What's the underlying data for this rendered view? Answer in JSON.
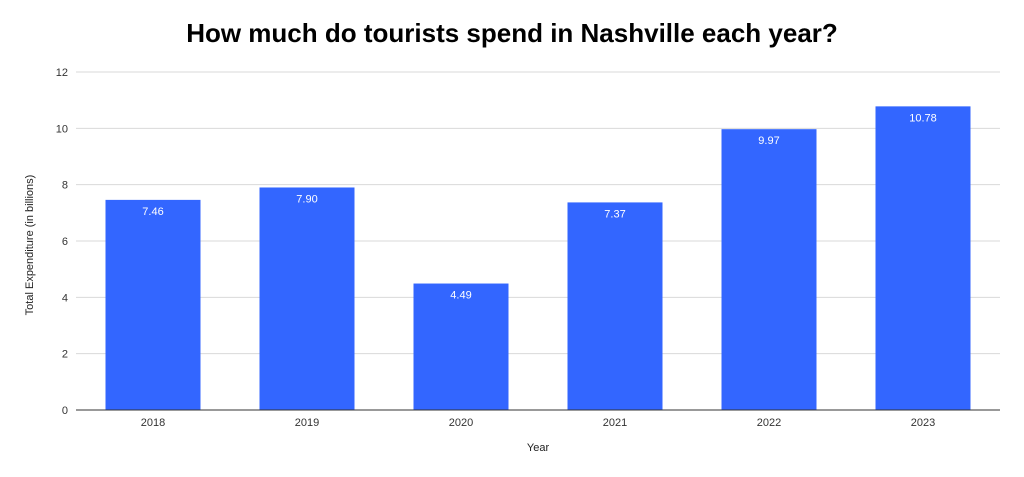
{
  "chart_data": {
    "type": "bar",
    "title": "How much do tourists spend in Nashville each year?",
    "xlabel": "Year",
    "ylabel": "Total Expenditure (in billions)",
    "categories": [
      "2018",
      "2019",
      "2020",
      "2021",
      "2022",
      "2023"
    ],
    "values": [
      7.46,
      7.9,
      4.49,
      7.37,
      9.97,
      10.78
    ],
    "data_labels": [
      "7.46",
      "7.90",
      "4.49",
      "7.37",
      "9.97",
      "10.78"
    ],
    "ylim": [
      0,
      12
    ],
    "yticks": [
      0,
      2,
      4,
      6,
      8,
      10,
      12
    ],
    "grid": true,
    "legend": "none",
    "bar_color": "#3366ff"
  }
}
